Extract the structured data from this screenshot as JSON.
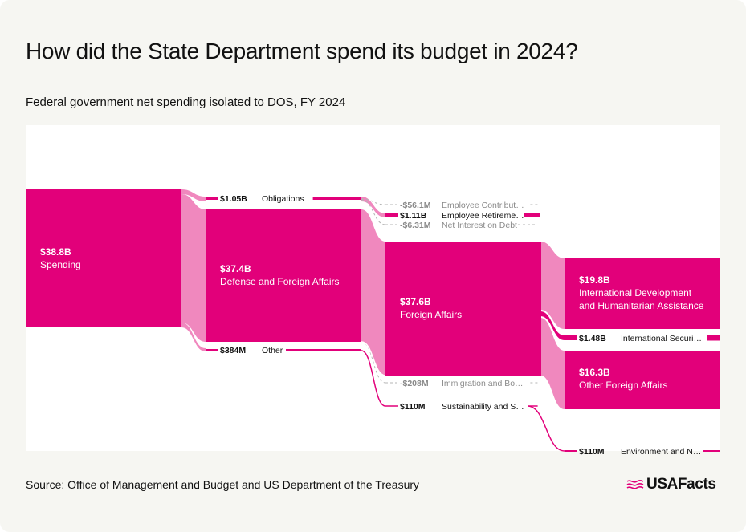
{
  "page": {
    "title": "How did the State Department spend its budget in 2024?",
    "subtitle": "Federal government net spending isolated to DOS, FY 2024",
    "source": "Source: Office of Management and Budget and US Department of the Treasury",
    "brand": "USAFacts"
  },
  "colors": {
    "primary": "#e2007a",
    "flow": "#f088be",
    "negative": "#b5b5b5",
    "label_muted": "#8a8a8a",
    "text_white": "#ffffff",
    "text_dark": "#111111"
  },
  "chart_data": {
    "type": "sankey",
    "title": "How did the State Department spend its budget in 2024?",
    "subtitle": "Federal government net spending isolated to DOS, FY 2024",
    "units": "USD billions",
    "nodes": [
      {
        "id": "spending",
        "name": "Spending",
        "value_label": "$38.8B",
        "value": 38.8,
        "level": 0
      },
      {
        "id": "obligations",
        "name": "Obligations",
        "value_label": "$1.05B",
        "value": 1.05,
        "level": 1
      },
      {
        "id": "defense",
        "name": "Defense and Foreign Affairs",
        "value_label": "$37.4B",
        "value": 37.4,
        "level": 1
      },
      {
        "id": "other",
        "name": "Other",
        "value_label": "$384M",
        "value": 0.384,
        "level": 1
      },
      {
        "id": "emp_contrib",
        "name": "Employee Contribut…",
        "value_label": "-$56.1M",
        "value": -0.0561,
        "level": 2
      },
      {
        "id": "emp_retire",
        "name": "Employee Retireme…",
        "value_label": "$1.11B",
        "value": 1.11,
        "level": 2
      },
      {
        "id": "net_interest",
        "name": "Net Interest on Debt",
        "value_label": "-$6.31M",
        "value": -0.00631,
        "level": 2
      },
      {
        "id": "foreign",
        "name": "Foreign Affairs",
        "value_label": "$37.6B",
        "value": 37.6,
        "level": 2
      },
      {
        "id": "immigration",
        "name": "Immigration and Bo…",
        "value_label": "-$208M",
        "value": -0.208,
        "level": 2
      },
      {
        "id": "sustain",
        "name": "Sustainability and S…",
        "value_label": "$110M",
        "value": 0.11,
        "level": 2
      },
      {
        "id": "intl_dev",
        "name": "International Development and Humanitarian Assistance",
        "value_label": "$19.8B",
        "value": 19.8,
        "level": 3
      },
      {
        "id": "intl_sec",
        "name": "International Securi…",
        "value_label": "$1.48B",
        "value": 1.48,
        "level": 3
      },
      {
        "id": "other_foreign",
        "name": "Other Foreign Affairs",
        "value_label": "$16.3B",
        "value": 16.3,
        "level": 3
      },
      {
        "id": "environment",
        "name": "Environment and N…",
        "value_label": "$110M",
        "value": 0.11,
        "level": 3
      }
    ],
    "links": [
      {
        "source": "spending",
        "target": "obligations",
        "value": 1.05
      },
      {
        "source": "spending",
        "target": "defense",
        "value": 37.4
      },
      {
        "source": "spending",
        "target": "other",
        "value": 0.384
      },
      {
        "source": "obligations",
        "target": "emp_contrib",
        "value": -0.0561
      },
      {
        "source": "obligations",
        "target": "emp_retire",
        "value": 1.11
      },
      {
        "source": "obligations",
        "target": "net_interest",
        "value": -0.00631
      },
      {
        "source": "defense",
        "target": "foreign",
        "value": 37.6
      },
      {
        "source": "defense",
        "target": "immigration",
        "value": -0.208
      },
      {
        "source": "other",
        "target": "sustain",
        "value": 0.11
      },
      {
        "source": "foreign",
        "target": "intl_dev",
        "value": 19.8
      },
      {
        "source": "foreign",
        "target": "intl_sec",
        "value": 1.48
      },
      {
        "source": "foreign",
        "target": "other_foreign",
        "value": 16.3
      },
      {
        "source": "sustain",
        "target": "environment",
        "value": 0.11
      }
    ]
  }
}
